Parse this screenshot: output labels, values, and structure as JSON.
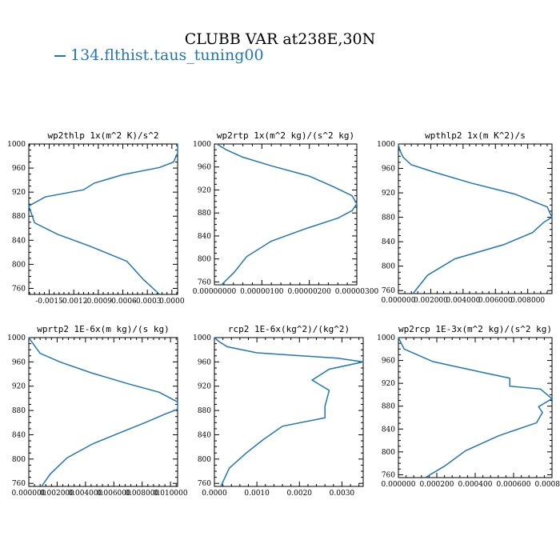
{
  "title": "CLUBB VAR at238E,30N",
  "legend": {
    "label": "134.flthist.taus_tuning00",
    "color": "#1f77b4"
  },
  "chart_data": [
    {
      "type": "line",
      "title": "wp2thlp  1x(m^2 K)/s^2",
      "xlim": [
        -0.00175,
        7e-05
      ],
      "ylim": [
        1000,
        750
      ],
      "xticks": [
        -0.0015,
        -0.0012,
        -0.0009,
        -0.0006,
        -0.0003,
        0.0
      ],
      "xtick_labels": [
        "-0.0015",
        "-0.0012",
        "-0.0009",
        "-0.0006",
        "-0.0003",
        "0.0000"
      ],
      "yticks": [
        760,
        800,
        840,
        880,
        920,
        960,
        1000
      ],
      "series": [
        {
          "x": [
            -0.00015,
            -0.00035,
            -0.00055,
            -0.001,
            -0.0014,
            -0.00168,
            -0.00175,
            -0.00155,
            -0.00108,
            -0.00095,
            -0.0006,
            -0.00015,
            2e-05,
            7e-05,
            7e-05
          ],
          "y": [
            750,
            775,
            805,
            830,
            850,
            869,
            897,
            912,
            924,
            935,
            949,
            961,
            970,
            985,
            1000
          ]
        }
      ]
    },
    {
      "type": "line",
      "title": "wp2rtp  1x(m^2 kg)/(s^2 kg)",
      "xlim": [
        0.0,
        3e-06
      ],
      "ylim": [
        1000,
        755
      ],
      "xticks": [
        0.0,
        1e-06,
        2e-06,
        3e-06
      ],
      "xtick_labels": [
        "0.00000000",
        "0.00000100",
        "0.00000200",
        "0.00000300"
      ],
      "yticks": [
        760,
        800,
        840,
        880,
        920,
        960,
        1000
      ],
      "series": [
        {
          "x": [
            1.5e-07,
            4.2e-07,
            6.8e-07,
            1.2e-06,
            1.9e-06,
            2.6e-06,
            2.9e-06,
            3e-06,
            2.9e-06,
            2.5e-06,
            2e-06,
            1.2e-06,
            6e-07,
            2.5e-07,
            5e-08
          ],
          "y": [
            755,
            777,
            804,
            831,
            852,
            871,
            884,
            896,
            910,
            926,
            944,
            962,
            977,
            990,
            1000
          ]
        }
      ]
    },
    {
      "type": "line",
      "title": "wpthlp2  1x(m K^2)/s",
      "xlim": [
        0.0,
        0.0095
      ],
      "ylim": [
        1000,
        755
      ],
      "xticks": [
        0.0,
        0.002,
        0.004,
        0.006,
        0.008
      ],
      "xtick_labels": [
        "0.000000",
        "0.002000",
        "0.004000",
        "0.006000",
        "0.008000"
      ],
      "yticks": [
        760,
        800,
        840,
        880,
        920,
        960,
        1000
      ],
      "series": [
        {
          "x": [
            0.0009,
            0.0018,
            0.0035,
            0.0065,
            0.0083,
            0.009,
            0.0095,
            0.0092,
            0.0072,
            0.0045,
            0.0022,
            0.0008,
            0.0003,
            8e-05,
            0.0
          ],
          "y": [
            755,
            785,
            812,
            835,
            855,
            872,
            880,
            897,
            918,
            936,
            954,
            966,
            978,
            990,
            1000
          ]
        }
      ]
    },
    {
      "type": "line",
      "title": "wprtp2  1E-6x(m kg)/(s kg)",
      "xlim": [
        0.0,
        0.0105
      ],
      "ylim": [
        1000,
        755
      ],
      "xticks": [
        0.0,
        0.002,
        0.004,
        0.006,
        0.008,
        0.01
      ],
      "xtick_labels": [
        "0.000000",
        "0.002000",
        "0.004000",
        "0.006000",
        "0.008000",
        "0.010000"
      ],
      "yticks": [
        760,
        800,
        840,
        880,
        920,
        960,
        1000
      ],
      "series": [
        {
          "x": [
            0.0009,
            0.0015,
            0.0027,
            0.0045,
            0.0065,
            0.0082,
            0.0096,
            0.0105,
            0.0105,
            0.0092,
            0.007,
            0.0044,
            0.0022,
            0.0008,
            0.0003,
            0.0
          ],
          "y": [
            755,
            775,
            802,
            825,
            844,
            860,
            874,
            882,
            894,
            910,
            924,
            942,
            960,
            974,
            990,
            1000
          ]
        }
      ]
    },
    {
      "type": "line",
      "title": "rcp2  1E-6x(kg^2)/(kg^2)",
      "xlim": [
        0.0,
        0.0035
      ],
      "ylim": [
        1000,
        755
      ],
      "xticks": [
        0.0,
        0.001,
        0.002,
        0.003
      ],
      "xtick_labels": [
        "0.0000",
        "0.0010",
        "0.0020",
        "0.0030"
      ],
      "yticks": [
        760,
        800,
        840,
        880,
        920,
        960,
        1000
      ],
      "series": [
        {
          "x": [
            0.00015,
            0.00035,
            0.00075,
            0.00115,
            0.0016,
            0.0026,
            0.0026,
            0.0027,
            0.0023,
            0.0027,
            0.0035,
            0.0029,
            0.001,
            0.0003,
            0.0001,
            0.0
          ],
          "y": [
            755,
            785,
            810,
            832,
            854,
            868,
            887,
            913,
            930,
            948,
            960,
            966,
            975,
            985,
            994,
            1000
          ]
        }
      ]
    },
    {
      "type": "line",
      "title": "wp2rcp  1E-3x(m^2 kg)/(s^2 kg)",
      "xlim": [
        0.0,
        0.0008
      ],
      "ylim": [
        1000,
        755
      ],
      "xticks": [
        0.0,
        0.0002,
        0.0004,
        0.0006,
        0.0008
      ],
      "xtick_labels": [
        "0.000000",
        "0.000200",
        "0.000400",
        "0.000600",
        "0.000800"
      ],
      "yticks": [
        760,
        800,
        840,
        880,
        920,
        960,
        1000
      ],
      "series": [
        {
          "x": [
            0.00014,
            0.00024,
            0.00035,
            0.00052,
            0.00072,
            0.00075,
            0.00073,
            0.0008,
            0.00074,
            0.00058,
            0.00058,
            0.00044,
            0.00018,
            3e-05,
            0.0
          ],
          "y": [
            755,
            775,
            802,
            828,
            851,
            869,
            879,
            893,
            910,
            915,
            929,
            939,
            958,
            980,
            1000
          ]
        }
      ]
    }
  ]
}
